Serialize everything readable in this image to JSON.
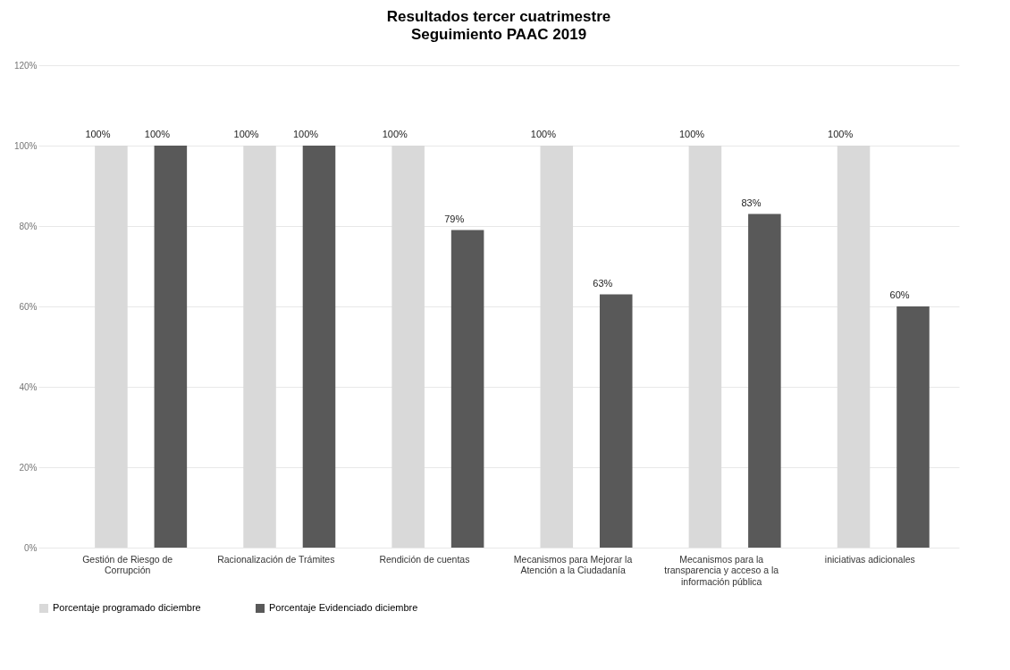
{
  "chart_data": {
    "type": "bar",
    "title": "Resultados tercer cuatrimestre",
    "subtitle": "Seguimiento PAAC 2019",
    "categories": [
      "Gestión de Riesgo de Corrupción",
      "Racionalización de Trámites",
      "Rendición de cuentas",
      "Mecanismos para Mejorar la Atención a la Ciudadanía",
      "Mecanismos para la transparencia y acceso a la información pública",
      "iniciativas adicionales"
    ],
    "series": [
      {
        "name": "Porcentaje programado diciembre",
        "color": "#d9d9d9",
        "values": [
          100,
          100,
          100,
          100,
          100,
          100
        ],
        "value_labels": [
          "100%",
          "100%",
          "100%",
          "100%",
          "100%",
          "100%"
        ]
      },
      {
        "name": "Porcentaje Evidenciado diciembre",
        "color": "#595959",
        "values": [
          100,
          100,
          79,
          63,
          83,
          60
        ],
        "value_labels": [
          "100%",
          "100%",
          "79%",
          "63%",
          "83%",
          "60%"
        ]
      }
    ],
    "ylim": [
      0,
      120
    ],
    "yticks": [
      {
        "value": 0,
        "label": "0%"
      },
      {
        "value": 20,
        "label": "20%"
      },
      {
        "value": 40,
        "label": "40%"
      },
      {
        "value": 60,
        "label": "60%"
      },
      {
        "value": 80,
        "label": "80%"
      },
      {
        "value": 100,
        "label": "100%"
      },
      {
        "value": 120,
        "label": "120%"
      }
    ],
    "grid": "y",
    "legend": "bottom"
  }
}
